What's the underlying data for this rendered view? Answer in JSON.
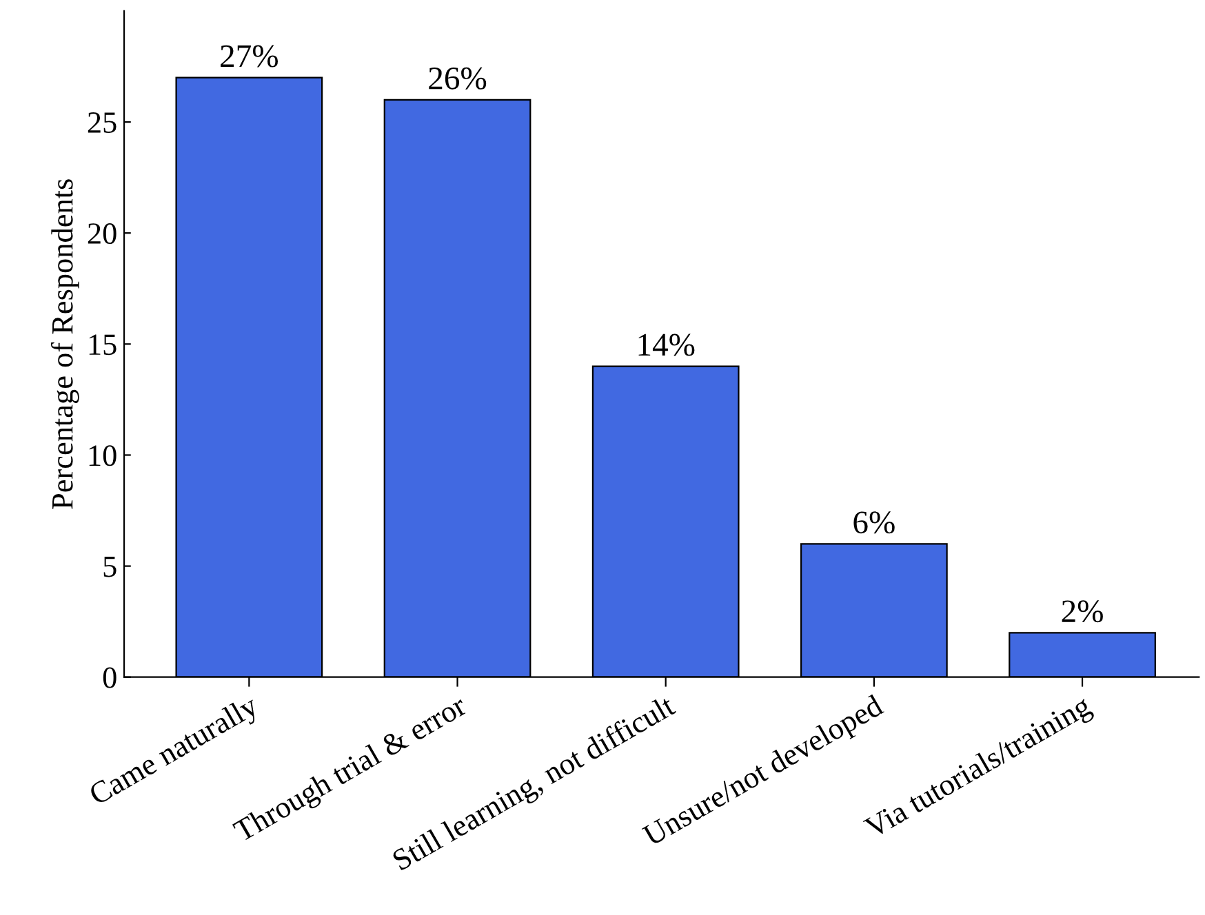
{
  "chart_data": {
    "type": "bar",
    "ylabel": "Percentage of Respondents",
    "categories": [
      "Came naturally",
      "Through trial & error",
      "Still learning, not difficult",
      "Unsure/not developed",
      "Via tutorials/training"
    ],
    "values": [
      27,
      26,
      14,
      6,
      2
    ],
    "value_labels": [
      "27%",
      "26%",
      "14%",
      "6%",
      "2%"
    ],
    "color": "#4169e1",
    "ylim": [
      0,
      30
    ],
    "yticks": [
      0,
      5,
      10,
      15,
      20,
      25
    ],
    "grid": false
  }
}
